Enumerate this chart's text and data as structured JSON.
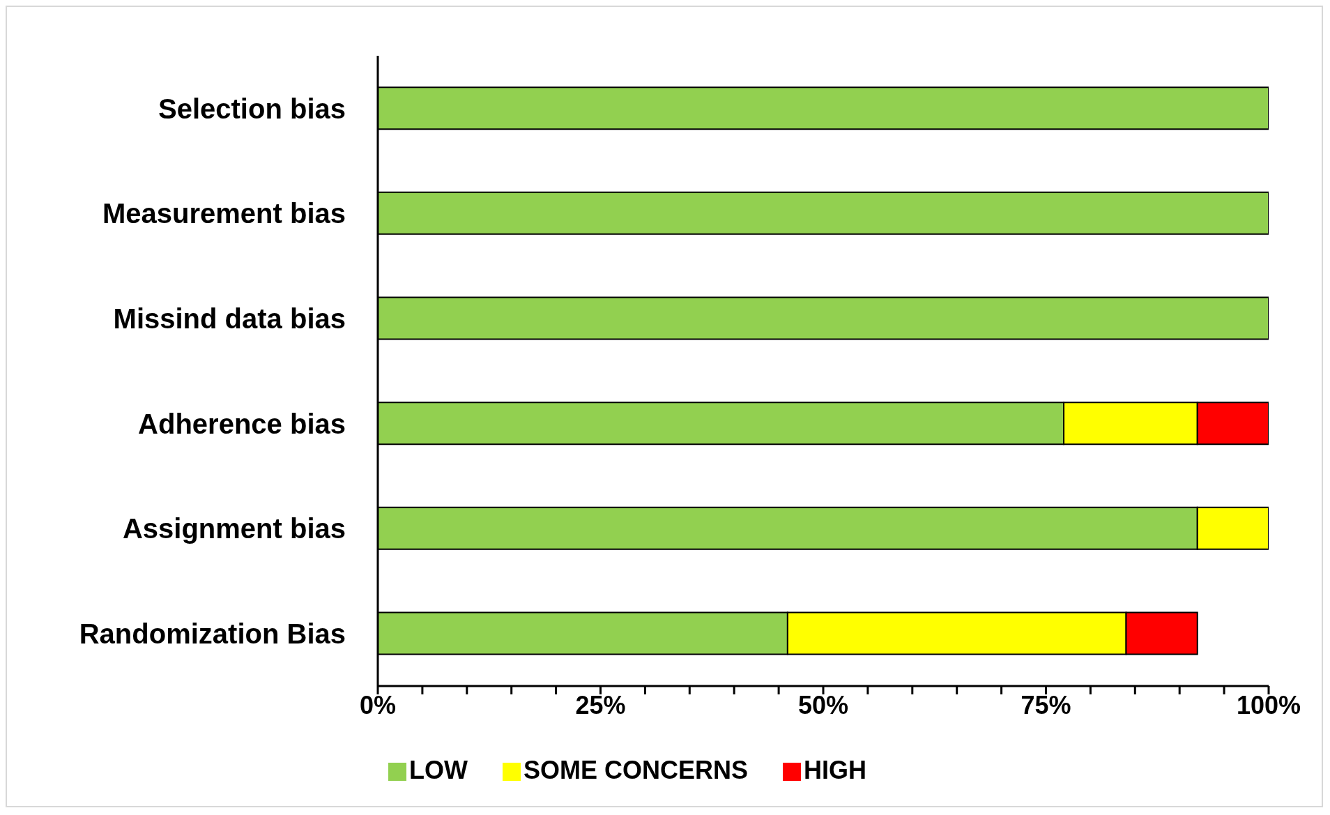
{
  "chart_data": {
    "type": "bar",
    "orientation": "horizontal",
    "stacked": true,
    "categories": [
      "Selection bias",
      "Measurement bias",
      "Missind data bias",
      "Adherence bias",
      "Assignment bias",
      "Randomization Bias"
    ],
    "series": [
      {
        "name": "LOW",
        "color": "#92d050",
        "values": [
          100,
          100,
          100,
          77,
          92,
          46
        ]
      },
      {
        "name": "SOME  CONCERNS",
        "color": "#ffff00",
        "values": [
          null,
          null,
          null,
          15,
          8,
          38
        ]
      },
      {
        "name": "HIGH",
        "color": "#ff0000",
        "values": [
          null,
          null,
          null,
          8,
          null,
          8
        ]
      }
    ],
    "xlim": [
      0,
      100
    ],
    "xticks": [
      {
        "value": 0,
        "label": "0%"
      },
      {
        "value": 5,
        "label": null
      },
      {
        "value": 10,
        "label": null
      },
      {
        "value": 15,
        "label": null
      },
      {
        "value": 20,
        "label": null
      },
      {
        "value": 25,
        "label": "25%"
      },
      {
        "value": 30,
        "label": null
      },
      {
        "value": 35,
        "label": null
      },
      {
        "value": 40,
        "label": null
      },
      {
        "value": 45,
        "label": null
      },
      {
        "value": 50,
        "label": "50%"
      },
      {
        "value": 55,
        "label": null
      },
      {
        "value": 60,
        "label": null
      },
      {
        "value": 65,
        "label": null
      },
      {
        "value": 70,
        "label": null
      },
      {
        "value": 75,
        "label": "75%"
      },
      {
        "value": 80,
        "label": null
      },
      {
        "value": 85,
        "label": null
      },
      {
        "value": 90,
        "label": null
      },
      {
        "value": 95,
        "label": null
      },
      {
        "value": 100,
        "label": "100%"
      }
    ],
    "grid": false,
    "legend": "bottom"
  }
}
